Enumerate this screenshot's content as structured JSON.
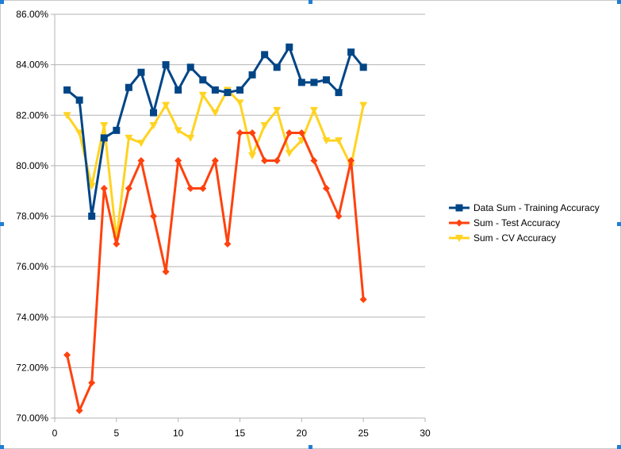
{
  "chart_data": {
    "type": "line",
    "title": "",
    "xlabel": "",
    "ylabel": "",
    "xlim": [
      0,
      30
    ],
    "ylim": [
      0.7,
      0.86
    ],
    "x_ticks": [
      "0",
      "5",
      "10",
      "15",
      "20",
      "25",
      "30"
    ],
    "y_ticks": [
      "70.00%",
      "72.00%",
      "74.00%",
      "76.00%",
      "78.00%",
      "80.00%",
      "82.00%",
      "84.00%",
      "86.00%"
    ],
    "grid": "horizontal",
    "legend_position": "right",
    "x": [
      1,
      2,
      3,
      4,
      5,
      6,
      7,
      8,
      9,
      10,
      11,
      12,
      13,
      14,
      15,
      16,
      17,
      18,
      19,
      20,
      21,
      22,
      23,
      24,
      25
    ],
    "series": [
      {
        "name": "Data Sum -  Training Accuracy",
        "color": "#004586",
        "marker": "square",
        "values": [
          0.83,
          0.826,
          0.78,
          0.811,
          0.814,
          0.831,
          0.837,
          0.821,
          0.84,
          0.83,
          0.839,
          0.834,
          0.83,
          0.829,
          0.83,
          0.836,
          0.844,
          0.839,
          0.847,
          0.833,
          0.833,
          0.834,
          0.829,
          0.845,
          0.839
        ]
      },
      {
        "name": "Sum -  Test Accuracy",
        "color": "#ff420e",
        "marker": "diamond",
        "values": [
          0.725,
          0.703,
          0.714,
          0.791,
          0.769,
          0.791,
          0.802,
          0.78,
          0.758,
          0.802,
          0.791,
          0.791,
          0.802,
          0.769,
          0.813,
          0.813,
          0.802,
          0.802,
          0.813,
          0.813,
          0.802,
          0.791,
          0.78,
          0.802,
          0.747
        ]
      },
      {
        "name": "Sum -  CV Accuracy",
        "color": "#ffd320",
        "marker": "triangle-down",
        "values": [
          0.82,
          0.813,
          0.792,
          0.816,
          0.771,
          0.811,
          0.809,
          0.816,
          0.824,
          0.814,
          0.811,
          0.828,
          0.821,
          0.83,
          0.825,
          0.804,
          0.816,
          0.822,
          0.805,
          0.81,
          0.822,
          0.81,
          0.81,
          0.8,
          0.824
        ]
      }
    ]
  }
}
